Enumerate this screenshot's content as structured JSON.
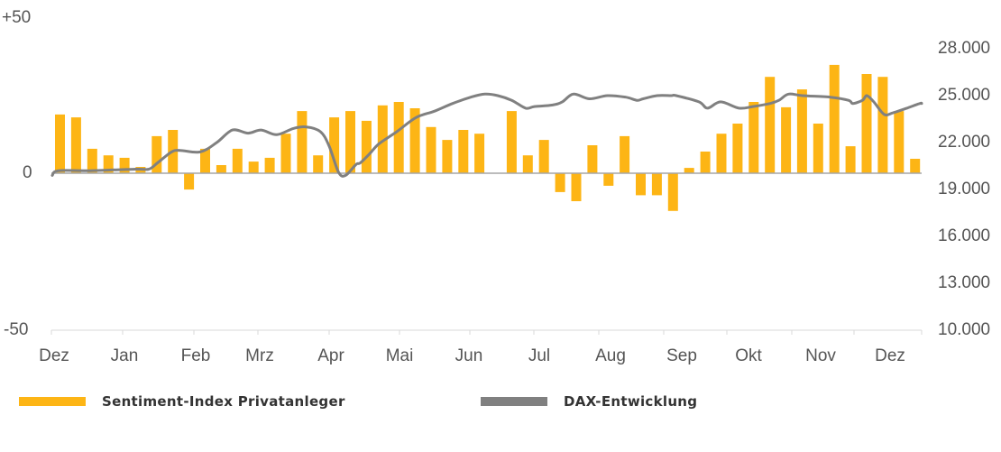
{
  "chart_data": {
    "type": "bar+line",
    "title": "",
    "x_month_labels": [
      "Dez",
      "Jan",
      "Feb",
      "Mrz",
      "Apr",
      "Mai",
      "Jun",
      "Jul",
      "Aug",
      "Sep",
      "Okt",
      "Nov",
      "Dez"
    ],
    "left_axis": {
      "label": "Sentiment-Index",
      "ticks": [
        "+50",
        "0",
        "-50"
      ],
      "ylim": [
        -50,
        50
      ]
    },
    "right_axis": {
      "label": "DAX",
      "ticks": [
        "28.000",
        "25.000",
        "22.000",
        "19.000",
        "16.000",
        "13.000",
        "10.000"
      ],
      "ylim": [
        10000,
        28000
      ]
    },
    "legend_position": "bottom",
    "grid": false,
    "series": [
      {
        "name": "Sentiment-Index Privatanleger",
        "type": "bar",
        "axis": "left",
        "color": "#FDB515",
        "values": [
          18.7,
          17.8,
          7.8,
          5.7,
          4.9,
          2,
          11.8,
          13.8,
          -5.2,
          7.8,
          2.6,
          7.8,
          3.7,
          4.9,
          12.6,
          19.8,
          5.7,
          17.8,
          19.8,
          16.7,
          21.6,
          22.7,
          20.7,
          14.7,
          10.6,
          13.8,
          12.6,
          0,
          19.8,
          5.7,
          10.6,
          -6,
          -8.9,
          8.9,
          -4,
          11.8,
          -7,
          -7,
          -12,
          1.7,
          6.9,
          12.6,
          15.8,
          22.7,
          30.7,
          21,
          26.7,
          15.8,
          34.5,
          8.6,
          31.6,
          30.7,
          19.8,
          4.6
        ]
      },
      {
        "name": "DAX-Entwicklung",
        "type": "line",
        "axis": "right",
        "color": "#808080",
        "points": [
          [
            0.001,
            19900
          ],
          [
            0.008,
            20200
          ],
          [
            0.045,
            20200
          ],
          [
            0.097,
            20300
          ],
          [
            0.112,
            20300
          ],
          [
            0.122,
            20700
          ],
          [
            0.138,
            21400
          ],
          [
            0.148,
            21500
          ],
          [
            0.171,
            21400
          ],
          [
            0.19,
            22000
          ],
          [
            0.208,
            22800
          ],
          [
            0.226,
            22600
          ],
          [
            0.241,
            22800
          ],
          [
            0.259,
            22500
          ],
          [
            0.278,
            22900
          ],
          [
            0.293,
            23000
          ],
          [
            0.309,
            22700
          ],
          [
            0.319,
            21800
          ],
          [
            0.33,
            20100
          ],
          [
            0.338,
            19900
          ],
          [
            0.35,
            20600
          ],
          [
            0.355,
            20700
          ],
          [
            0.366,
            21300
          ],
          [
            0.376,
            21900
          ],
          [
            0.397,
            22700
          ],
          [
            0.419,
            23600
          ],
          [
            0.44,
            24000
          ],
          [
            0.461,
            24500
          ],
          [
            0.482,
            24900
          ],
          [
            0.498,
            25100
          ],
          [
            0.513,
            25000
          ],
          [
            0.529,
            24700
          ],
          [
            0.545,
            24200
          ],
          [
            0.555,
            24300
          ],
          [
            0.576,
            24400
          ],
          [
            0.587,
            24600
          ],
          [
            0.6,
            25100
          ],
          [
            0.618,
            24800
          ],
          [
            0.639,
            25000
          ],
          [
            0.66,
            24900
          ],
          [
            0.673,
            24700
          ],
          [
            0.68,
            24800
          ],
          [
            0.696,
            25000
          ],
          [
            0.712,
            25000
          ],
          [
            0.718,
            25000
          ],
          [
            0.744,
            24600
          ],
          [
            0.754,
            24200
          ],
          [
            0.769,
            24600
          ],
          [
            0.79,
            24200
          ],
          [
            0.806,
            24300
          ],
          [
            0.826,
            24500
          ],
          [
            0.836,
            24700
          ],
          [
            0.847,
            25100
          ],
          [
            0.863,
            25000
          ],
          [
            0.895,
            24900
          ],
          [
            0.916,
            24700
          ],
          [
            0.921,
            24500
          ],
          [
            0.932,
            24700
          ],
          [
            0.937,
            25000
          ],
          [
            0.945,
            24600
          ],
          [
            0.957,
            23800
          ],
          [
            0.967,
            23900
          ],
          [
            0.983,
            24200
          ],
          [
            0.998,
            24500
          ],
          [
            1.0,
            24500
          ]
        ]
      }
    ]
  },
  "legend": {
    "items": [
      {
        "label": "Sentiment-Index Privatanleger",
        "color": "#FDB515"
      },
      {
        "label": "DAX-Entwicklung",
        "color": "#808080"
      }
    ]
  }
}
